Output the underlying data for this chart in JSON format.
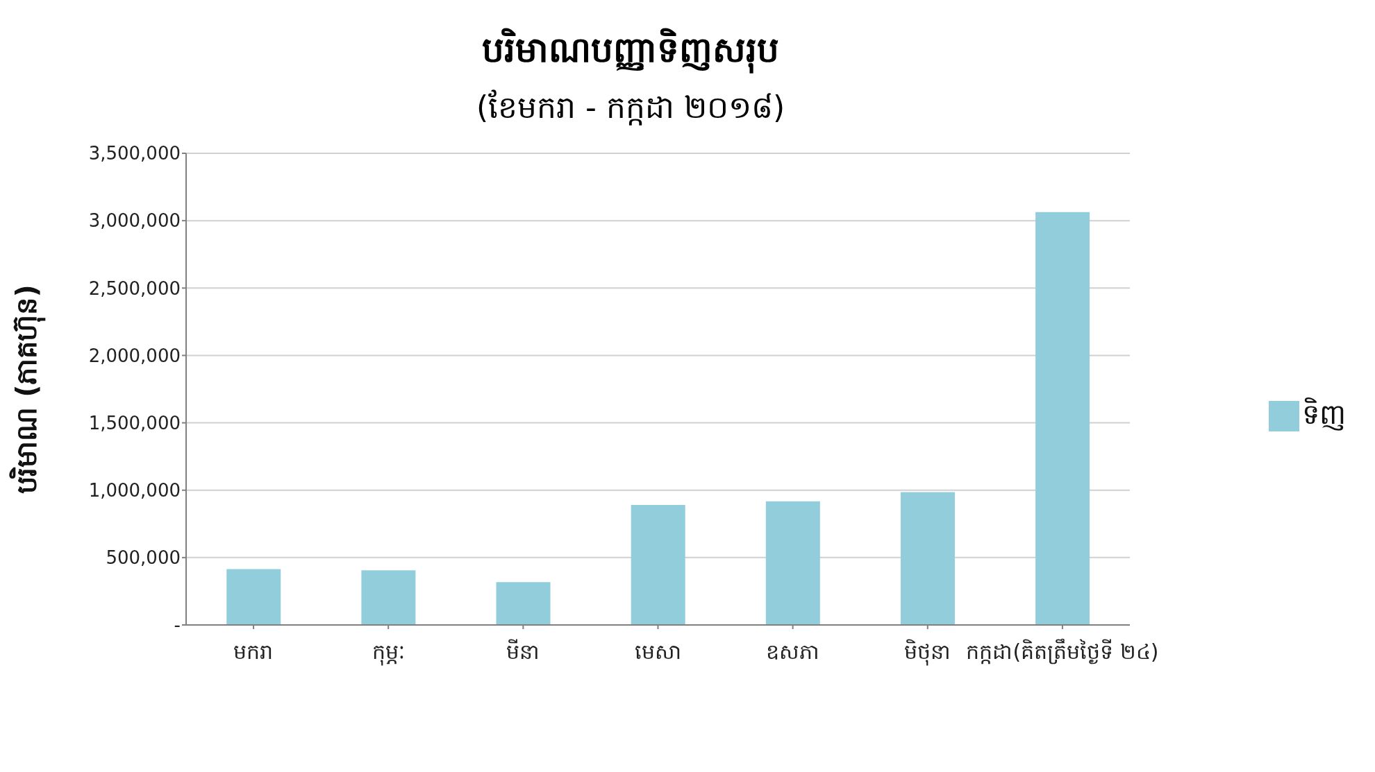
{
  "chart_data": {
    "type": "bar",
    "title": "បរិមាណបញ្ញាទិញសរុប",
    "subtitle": "(ខែមករា - កក្កដា ២០១៨)",
    "ylabel": "បរិមាណ (ភាគហ៊ុន)",
    "categories": [
      "មករា",
      "កុម្ភៈ",
      "មីនា",
      "មេសា",
      "ឧសភា",
      "មិថុនា",
      "កក្កដា(គិតត្រឹមថ្ងៃទី ២៤)"
    ],
    "series": [
      {
        "name": "ទិញ",
        "color": "#92cddc",
        "values": [
          414000,
          405000,
          318000,
          891000,
          918000,
          986000,
          3064000
        ]
      }
    ],
    "ylim": [
      0,
      3500000
    ],
    "yticks": [
      {
        "value": 0,
        "label": "-"
      },
      {
        "value": 500000,
        "label": "500,000"
      },
      {
        "value": 1000000,
        "label": "1,000,000"
      },
      {
        "value": 1500000,
        "label": "1,500,000"
      },
      {
        "value": 2000000,
        "label": "2,000,000"
      },
      {
        "value": 2500000,
        "label": "2,500,000"
      },
      {
        "value": 3000000,
        "label": "3,000,000"
      },
      {
        "value": 3500000,
        "label": "3,500,000"
      }
    ],
    "grid": "y",
    "legend": "right"
  }
}
